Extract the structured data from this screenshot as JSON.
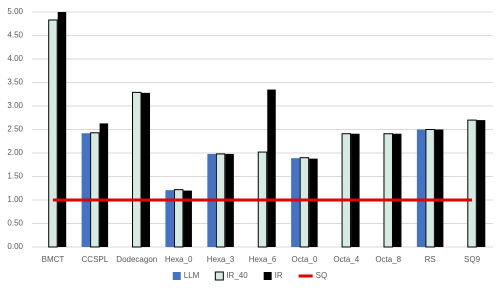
{
  "chart_data": {
    "type": "bar",
    "categories": [
      "BMCT",
      "CCSPL",
      "Dodecagon",
      "Hexa_0",
      "Hexa_3",
      "Hexa_6",
      "Octa_0",
      "Octa_4",
      "Octa_8",
      "RS",
      "SQ9"
    ],
    "series": [
      {
        "name": "LLM",
        "color": "#4472c4",
        "values": [
          null,
          2.42,
          null,
          1.21,
          1.98,
          null,
          1.89,
          null,
          null,
          2.5,
          null
        ]
      },
      {
        "name": "IR_40",
        "color": "#d5ebe2",
        "edgecolor": "#000000",
        "values": [
          4.83,
          2.43,
          3.29,
          1.22,
          1.98,
          2.02,
          1.9,
          2.41,
          2.41,
          2.5,
          2.7
        ]
      },
      {
        "name": "IR",
        "color": "#000000",
        "values": [
          5.0,
          2.63,
          3.28,
          1.2,
          1.98,
          3.35,
          1.88,
          2.41,
          2.41,
          2.5,
          2.7
        ]
      },
      {
        "name": "SQ",
        "color": "#e00000",
        "type": "line",
        "values": [
          1,
          1,
          1,
          1,
          1,
          1,
          1,
          1,
          1,
          1,
          1
        ]
      }
    ],
    "ylim": [
      0,
      5
    ],
    "yticks": [
      {
        "value": 0,
        "label": "0.00"
      },
      {
        "value": 0.5,
        "label": "0.50"
      },
      {
        "value": 1,
        "label": "1.00"
      },
      {
        "value": 1.5,
        "label": "1.50"
      },
      {
        "value": 2,
        "label": "2.00"
      },
      {
        "value": 2.5,
        "label": "2.50"
      },
      {
        "value": 3,
        "label": "3.00"
      },
      {
        "value": 3.5,
        "label": "3.50"
      },
      {
        "value": 4,
        "label": "4.00"
      },
      {
        "value": 4.5,
        "label": "4.50"
      },
      {
        "value": 5,
        "label": "5.00"
      }
    ],
    "grid": true,
    "legend": "bottom"
  }
}
